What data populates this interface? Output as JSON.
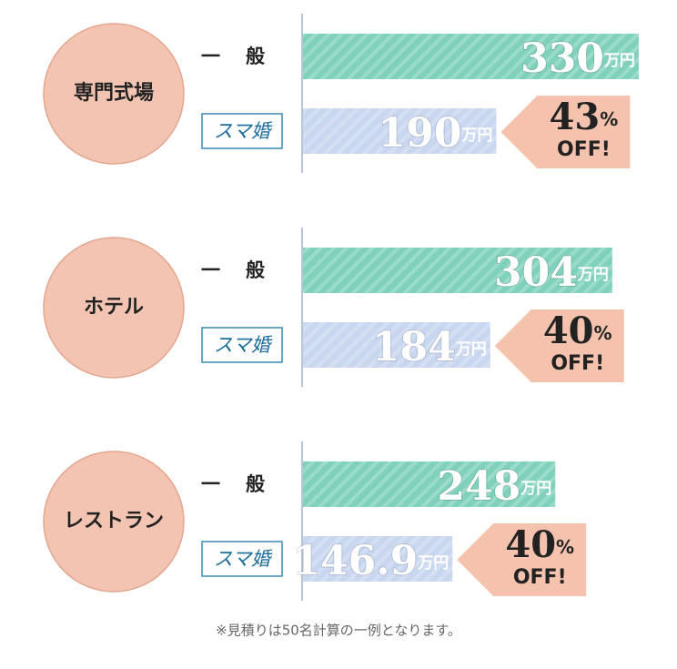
{
  "chart_data": [
    {
      "type": "bar",
      "title": "専門式場",
      "categories": [
        "一般",
        "スマ婚"
      ],
      "values": [
        330,
        190
      ],
      "unit": "万円",
      "colors": [
        "#7fd1bc",
        "#c8d6ef"
      ],
      "discount": 43,
      "discount_unit": "%",
      "discount_label": "OFF!"
    },
    {
      "type": "bar",
      "title": "ホテル",
      "categories": [
        "一般",
        "スマ婚"
      ],
      "values": [
        304,
        184
      ],
      "unit": "万円",
      "colors": [
        "#7fd1bc",
        "#c8d6ef"
      ],
      "discount": 40,
      "discount_unit": "%",
      "discount_label": "OFF!"
    },
    {
      "type": "bar",
      "title": "レストラン",
      "categories": [
        "一般",
        "スマ婚"
      ],
      "values": [
        248,
        146.9
      ],
      "unit": "万円",
      "colors": [
        "#7fd1bc",
        "#c8d6ef"
      ],
      "discount": 40,
      "discount_unit": "%",
      "discount_label": "OFF!"
    }
  ],
  "note": "※見積りは50名計算の一例となります。"
}
